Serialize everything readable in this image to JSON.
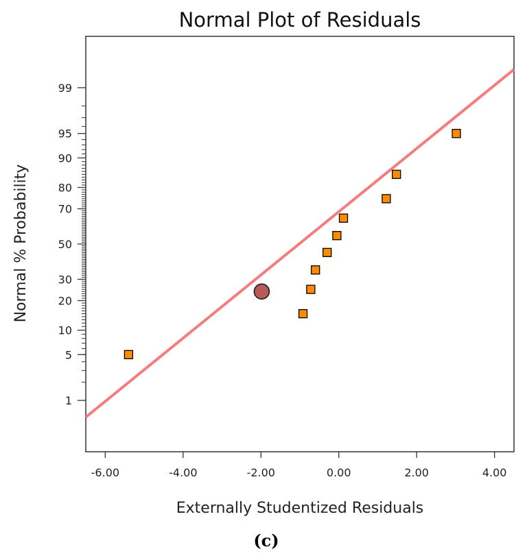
{
  "chart_data": {
    "type": "scatter",
    "title": "Normal Plot of Residuals",
    "xlabel": "Externally Studentized Residuals",
    "ylabel": "Normal % Probability",
    "xlim": [
      -6.5,
      4.5
    ],
    "x_ticks": [
      -6.0,
      -4.0,
      -2.0,
      0.0,
      2.0,
      4.0
    ],
    "x_tick_labels": [
      "-6.00",
      "-4.00",
      "-2.00",
      "0.00",
      "2.00",
      "4.00"
    ],
    "y_scale": "normal-probability",
    "ylim": [
      0.1,
      99.9
    ],
    "y_ticks": [
      1,
      5,
      10,
      20,
      30,
      50,
      70,
      80,
      90,
      95,
      99
    ],
    "y_tick_labels": [
      "1",
      "5",
      "10",
      "20",
      "30",
      "50",
      "70",
      "80",
      "90",
      "95",
      "99"
    ],
    "grid": false,
    "points": [
      {
        "x": -5.4,
        "y": 5
      },
      {
        "x": -0.92,
        "y": 15
      },
      {
        "x": -0.72,
        "y": 25
      },
      {
        "x": -0.6,
        "y": 35
      },
      {
        "x": -0.3,
        "y": 45
      },
      {
        "x": -0.05,
        "y": 55
      },
      {
        "x": 0.12,
        "y": 65
      },
      {
        "x": 1.22,
        "y": 75
      },
      {
        "x": 1.48,
        "y": 85
      },
      {
        "x": 3.02,
        "y": 95
      }
    ],
    "highlight_point": {
      "x": -1.98,
      "y": 24
    },
    "fit_line": [
      {
        "x": -6.5,
        "y": 0.5
      },
      {
        "x": 4.5,
        "y": 99.53
      }
    ],
    "colors": {
      "point_fill": "#ff8c00",
      "point_stroke": "#000000",
      "line": "#f47c7c",
      "highlight_fill": "#b85a5a"
    }
  },
  "caption": "(c)"
}
